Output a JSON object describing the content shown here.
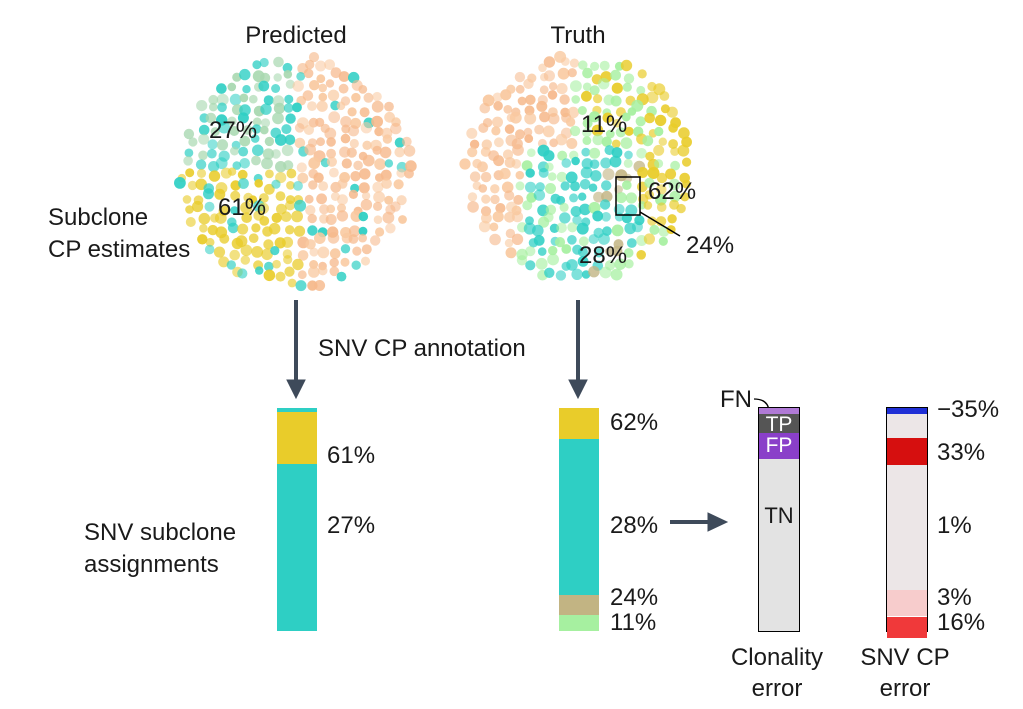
{
  "titles": {
    "predicted": "Predicted",
    "truth": "Truth"
  },
  "predicted_panel": {
    "label_line1": "Subclone",
    "label_line2": "CP estimates",
    "clusters": [
      {
        "label": "27%",
        "color": "#2ecfc4"
      },
      {
        "label": "61%",
        "color": "#e9cc2a"
      }
    ],
    "background_color": "#f9c9a0"
  },
  "truth_panel": {
    "clusters": [
      {
        "label": "11%",
        "color": "#a6f0a0"
      },
      {
        "label": "62%",
        "color": "#e9cc2a"
      },
      {
        "label": "28%",
        "color": "#2ecfc4"
      },
      {
        "label": "24%",
        "color": "#c2b483"
      }
    ],
    "background_color": "#f9c9a0"
  },
  "annotation_label": "SNV CP annotation",
  "assignments_label_line1": "SNV subclone",
  "assignments_label_line2": "assignments",
  "predicted_bar": {
    "segments": [
      {
        "fraction": 0.02,
        "color": "#2ecfc4"
      },
      {
        "fraction": 0.23,
        "color": "#e9cc2a",
        "label": "61%"
      },
      {
        "fraction": 0.75,
        "color": "#2ecfc4",
        "label": "27%"
      }
    ]
  },
  "truth_bar": {
    "segments": [
      {
        "fraction": 0.14,
        "color": "#e9cc2a",
        "label": "62%"
      },
      {
        "fraction": 0.7,
        "color": "#2ecfc4",
        "label": "28%"
      },
      {
        "fraction": 0.09,
        "color": "#c2b483",
        "label": "24%"
      },
      {
        "fraction": 0.07,
        "color": "#a6f0a0",
        "label": "11%"
      }
    ]
  },
  "clonality_bar": {
    "fn_label": "FN",
    "segments": [
      {
        "fraction": 0.025,
        "color": "#b07ad6",
        "name": "FN"
      },
      {
        "fraction": 0.085,
        "color": "#555555",
        "label": "TP"
      },
      {
        "fraction": 0.12,
        "color": "#8a3fc9",
        "label": "FP"
      },
      {
        "fraction": 0.77,
        "color": "#e3e3e3",
        "label": "TN"
      }
    ],
    "caption_line1": "Clonality",
    "caption_line2": "error"
  },
  "snv_error_bar": {
    "segments": [
      {
        "fraction": 0.025,
        "color": "#1f2fd6",
        "label": "−35%"
      },
      {
        "fraction": 0.11,
        "color": "#ece6e7"
      },
      {
        "fraction": 0.12,
        "color": "#d60f0f",
        "label": "33%"
      },
      {
        "fraction": 0.56,
        "color": "#ece6e7",
        "label": "1%"
      },
      {
        "fraction": 0.12,
        "color": "#f7cccc",
        "label": "3%"
      },
      {
        "fraction": 0.095,
        "color": "#f0393a",
        "label": "16%"
      }
    ],
    "caption_line1": "SNV CP",
    "caption_line2": "error"
  },
  "colors": {
    "arrow": "#3e4a5a",
    "outline": "#000000"
  }
}
